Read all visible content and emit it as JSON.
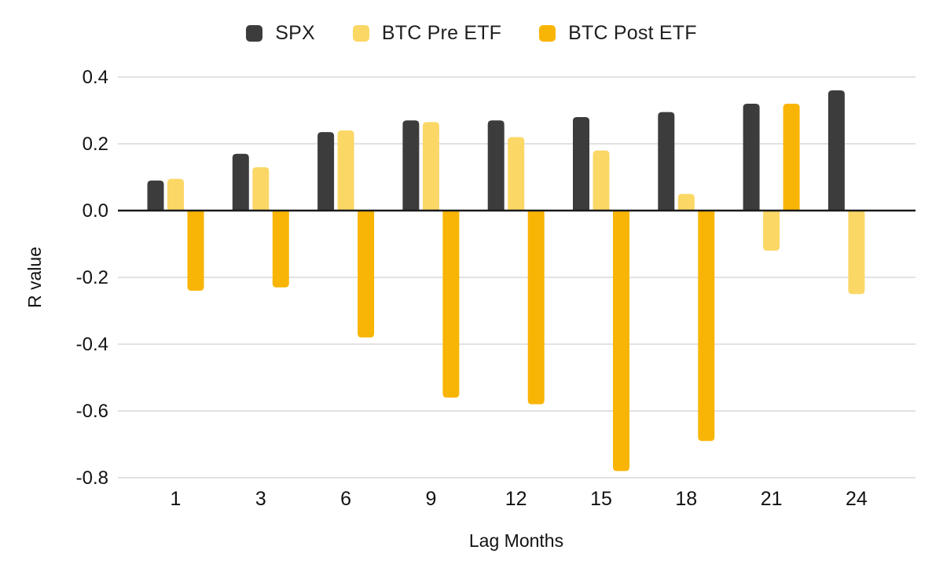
{
  "chart_data": {
    "type": "bar",
    "title": "",
    "xlabel": "Lag Months",
    "ylabel": "R value",
    "categories": [
      "1",
      "3",
      "6",
      "9",
      "12",
      "15",
      "18",
      "21",
      "24"
    ],
    "series": [
      {
        "name": "SPX",
        "color": "#3c3c3c",
        "values": [
          0.09,
          0.17,
          0.235,
          0.27,
          0.27,
          0.28,
          0.295,
          0.32,
          0.36
        ]
      },
      {
        "name": "BTC Pre ETF",
        "color": "#fbd766",
        "values": [
          0.095,
          0.13,
          0.24,
          0.265,
          0.22,
          0.18,
          0.05,
          -0.12,
          -0.25
        ]
      },
      {
        "name": "BTC Post ETF",
        "color": "#f9b505",
        "values": [
          -0.24,
          -0.23,
          -0.38,
          -0.56,
          -0.58,
          -0.78,
          -0.69,
          0.32,
          null
        ]
      }
    ],
    "ylim": [
      -0.8,
      0.4
    ],
    "ytick_labels": [
      "0.4",
      "0.2",
      "0.0",
      "-0.2",
      "-0.4",
      "-0.6",
      "-0.8"
    ],
    "ytick_values": [
      0.4,
      0.2,
      0.0,
      -0.2,
      -0.4,
      -0.6,
      -0.8
    ],
    "grid": true,
    "zero_line": true,
    "legend_position": "top"
  },
  "colors": {
    "gridline": "#e2e2e2",
    "zero_line": "#1b1b1b",
    "background": "#ffffff"
  }
}
